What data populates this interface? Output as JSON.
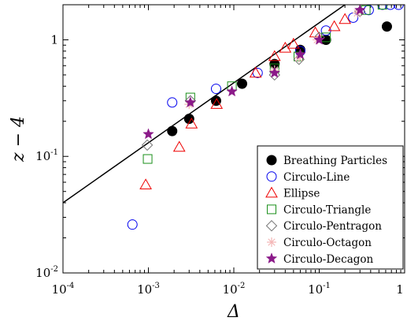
{
  "chart_data": {
    "type": "scatter",
    "title": "",
    "xlabel": "Δ",
    "ylabel": "z − 4",
    "xscale": "log",
    "yscale": "log",
    "xlim": [
      0.0001,
      1
    ],
    "ylim": [
      0.01,
      2
    ],
    "grid": false,
    "legend_position": "bottom-right",
    "x_ticks": [
      {
        "base": "10",
        "exp": "-4",
        "value": 0.0001
      },
      {
        "base": "10",
        "exp": "-3",
        "value": 0.001
      },
      {
        "base": "10",
        "exp": "-2",
        "value": 0.01
      },
      {
        "base": "10",
        "exp": "-1",
        "value": 0.1
      },
      {
        "base": "1",
        "exp": "",
        "value": 1
      }
    ],
    "y_ticks": [
      {
        "base": "10",
        "exp": "-2",
        "value": 0.01
      },
      {
        "base": "10",
        "exp": "-1",
        "value": 0.1
      },
      {
        "base": "1",
        "exp": "",
        "value": 1
      }
    ],
    "fit_line": {
      "points": [
        [
          0.0001,
          0.04
        ],
        [
          0.2,
          2.0
        ]
      ]
    },
    "series": [
      {
        "name": "Breathing Particles",
        "marker": "filled-circle",
        "color": "#000000",
        "x": [
          0.0019,
          0.003,
          0.0062,
          0.0125,
          0.03,
          0.06,
          0.12,
          0.62
        ],
        "y": [
          0.165,
          0.21,
          0.3,
          0.42,
          0.62,
          0.82,
          1.0,
          1.3
        ]
      },
      {
        "name": "Circulo-Line",
        "marker": "open-circle",
        "color": "#0000ee",
        "x": [
          0.00065,
          0.0019,
          0.0062,
          0.019,
          0.06,
          0.12,
          0.25,
          0.38,
          0.55,
          0.68,
          0.85
        ],
        "y": [
          0.026,
          0.29,
          0.38,
          0.52,
          0.8,
          1.2,
          1.55,
          1.8,
          2.0,
          2.0,
          2.0
        ]
      },
      {
        "name": "Ellipse",
        "marker": "open-triangle",
        "color": "#ee0000",
        "x": [
          0.00093,
          0.0023,
          0.0032,
          0.0063,
          0.018,
          0.03,
          0.04,
          0.05,
          0.09,
          0.15,
          0.2
        ],
        "y": [
          0.057,
          0.12,
          0.19,
          0.28,
          0.52,
          0.72,
          0.85,
          0.92,
          1.15,
          1.3,
          1.5
        ]
      },
      {
        "name": "Circulo-Triangle",
        "marker": "open-square",
        "color": "#1a8f1a",
        "x": [
          0.00098,
          0.0031,
          0.0095,
          0.03,
          0.057,
          0.12,
          0.35,
          0.55
        ],
        "y": [
          0.095,
          0.32,
          0.4,
          0.57,
          0.72,
          1.05,
          1.8,
          2.0
        ]
      },
      {
        "name": "Circulo-Pentragon",
        "marker": "open-diamond",
        "color": "#707070",
        "x": [
          0.00097,
          0.0031,
          0.03,
          0.058,
          0.1,
          0.3
        ],
        "y": [
          0.125,
          0.3,
          0.5,
          0.68,
          1.05,
          1.75
        ]
      },
      {
        "name": "Circulo-Octagon",
        "marker": "asterisk",
        "color": "#f4b6b6",
        "x": [
          0.003,
          0.03,
          0.058,
          0.095,
          0.28
        ],
        "y": [
          0.28,
          0.55,
          0.7,
          1.0,
          1.7
        ]
      },
      {
        "name": "Circulo-Decagon",
        "marker": "star",
        "color": "#8b1a89",
        "x": [
          0.001,
          0.0031,
          0.0095,
          0.03,
          0.06,
          0.1,
          0.3
        ],
        "y": [
          0.155,
          0.29,
          0.36,
          0.52,
          0.75,
          1.0,
          1.8
        ]
      }
    ]
  }
}
